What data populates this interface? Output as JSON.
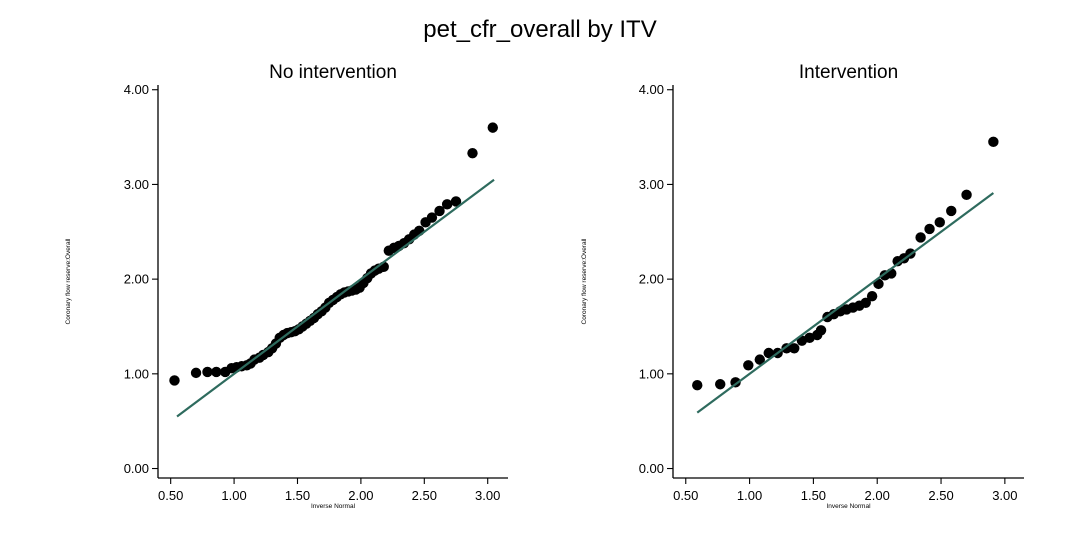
{
  "figure": {
    "title": "pet_cfr_overall by ITV"
  },
  "colors": {
    "points": "#000000",
    "fit_line": "#2e6b5e",
    "axis": "#000000"
  },
  "chart_data": [
    {
      "type": "scatter",
      "title": "No intervention",
      "xlabel": "Inverse Normal",
      "ylabel": "Coronary flow reserve:Overall",
      "xlim": [
        0.4,
        3.16
      ],
      "ylim": [
        -0.1,
        4.05
      ],
      "xticks": [
        0.5,
        1.0,
        1.5,
        2.0,
        2.5,
        3.0
      ],
      "xtick_labels": [
        "0.50",
        "1.00",
        "1.50",
        "2.00",
        "2.50",
        "3.00"
      ],
      "yticks": [
        0.0,
        1.0,
        2.0,
        3.0,
        4.0
      ],
      "ytick_labels": [
        "0.00",
        "1.00",
        "2.00",
        "3.00",
        "4.00"
      ],
      "fit_line": [
        [
          0.55,
          0.55
        ],
        [
          3.05,
          3.05
        ]
      ],
      "points": [
        [
          0.53,
          0.93
        ],
        [
          0.7,
          1.01
        ],
        [
          0.79,
          1.02
        ],
        [
          0.86,
          1.02
        ],
        [
          0.93,
          1.02
        ],
        [
          0.98,
          1.06
        ],
        [
          1.02,
          1.07
        ],
        [
          1.06,
          1.08
        ],
        [
          1.1,
          1.09
        ],
        [
          1.13,
          1.11
        ],
        [
          1.16,
          1.15
        ],
        [
          1.2,
          1.17
        ],
        [
          1.23,
          1.2
        ],
        [
          1.27,
          1.23
        ],
        [
          1.3,
          1.27
        ],
        [
          1.33,
          1.32
        ],
        [
          1.36,
          1.38
        ],
        [
          1.39,
          1.41
        ],
        [
          1.42,
          1.43
        ],
        [
          1.45,
          1.44
        ],
        [
          1.48,
          1.45
        ],
        [
          1.51,
          1.47
        ],
        [
          1.54,
          1.5
        ],
        [
          1.57,
          1.53
        ],
        [
          1.6,
          1.56
        ],
        [
          1.63,
          1.59
        ],
        [
          1.66,
          1.63
        ],
        [
          1.69,
          1.66
        ],
        [
          1.72,
          1.7
        ],
        [
          1.75,
          1.75
        ],
        [
          1.78,
          1.78
        ],
        [
          1.81,
          1.81
        ],
        [
          1.84,
          1.84
        ],
        [
          1.87,
          1.86
        ],
        [
          1.9,
          1.87
        ],
        [
          1.93,
          1.88
        ],
        [
          1.96,
          1.89
        ],
        [
          1.99,
          1.91
        ],
        [
          2.02,
          1.96
        ],
        [
          2.05,
          2.01
        ],
        [
          2.08,
          2.06
        ],
        [
          2.11,
          2.09
        ],
        [
          2.14,
          2.11
        ],
        [
          2.18,
          2.13
        ],
        [
          2.22,
          2.3
        ],
        [
          2.26,
          2.33
        ],
        [
          2.3,
          2.35
        ],
        [
          2.34,
          2.38
        ],
        [
          2.38,
          2.42
        ],
        [
          2.42,
          2.47
        ],
        [
          2.46,
          2.51
        ],
        [
          2.51,
          2.6
        ],
        [
          2.56,
          2.65
        ],
        [
          2.62,
          2.72
        ],
        [
          2.68,
          2.79
        ],
        [
          2.75,
          2.82
        ],
        [
          2.88,
          3.33
        ],
        [
          3.04,
          3.6
        ]
      ]
    },
    {
      "type": "scatter",
      "title": "Intervention",
      "xlabel": "Inverse Normal",
      "ylabel": "Coronary flow reserve:Overall",
      "xlim": [
        0.4,
        3.15
      ],
      "ylim": [
        -0.1,
        4.05
      ],
      "xticks": [
        0.5,
        1.0,
        1.5,
        2.0,
        2.5,
        3.0
      ],
      "xtick_labels": [
        "0.50",
        "1.00",
        "1.50",
        "2.00",
        "2.50",
        "3.00"
      ],
      "yticks": [
        0.0,
        1.0,
        2.0,
        3.0,
        4.0
      ],
      "ytick_labels": [
        "0.00",
        "1.00",
        "2.00",
        "3.00",
        "4.00"
      ],
      "fit_line": [
        [
          0.59,
          0.59
        ],
        [
          2.91,
          2.91
        ]
      ],
      "points": [
        [
          0.59,
          0.88
        ],
        [
          0.77,
          0.89
        ],
        [
          0.89,
          0.91
        ],
        [
          0.99,
          1.09
        ],
        [
          1.08,
          1.15
        ],
        [
          1.15,
          1.22
        ],
        [
          1.22,
          1.22
        ],
        [
          1.29,
          1.27
        ],
        [
          1.35,
          1.27
        ],
        [
          1.41,
          1.35
        ],
        [
          1.47,
          1.38
        ],
        [
          1.53,
          1.41
        ],
        [
          1.56,
          1.46
        ],
        [
          1.61,
          1.6
        ],
        [
          1.66,
          1.63
        ],
        [
          1.71,
          1.66
        ],
        [
          1.76,
          1.68
        ],
        [
          1.81,
          1.7
        ],
        [
          1.86,
          1.72
        ],
        [
          1.91,
          1.75
        ],
        [
          1.96,
          1.82
        ],
        [
          2.01,
          1.95
        ],
        [
          2.06,
          2.04
        ],
        [
          2.11,
          2.06
        ],
        [
          2.16,
          2.19
        ],
        [
          2.21,
          2.22
        ],
        [
          2.26,
          2.27
        ],
        [
          2.34,
          2.44
        ],
        [
          2.41,
          2.53
        ],
        [
          2.49,
          2.6
        ],
        [
          2.58,
          2.72
        ],
        [
          2.7,
          2.89
        ],
        [
          2.91,
          3.45
        ]
      ]
    }
  ]
}
